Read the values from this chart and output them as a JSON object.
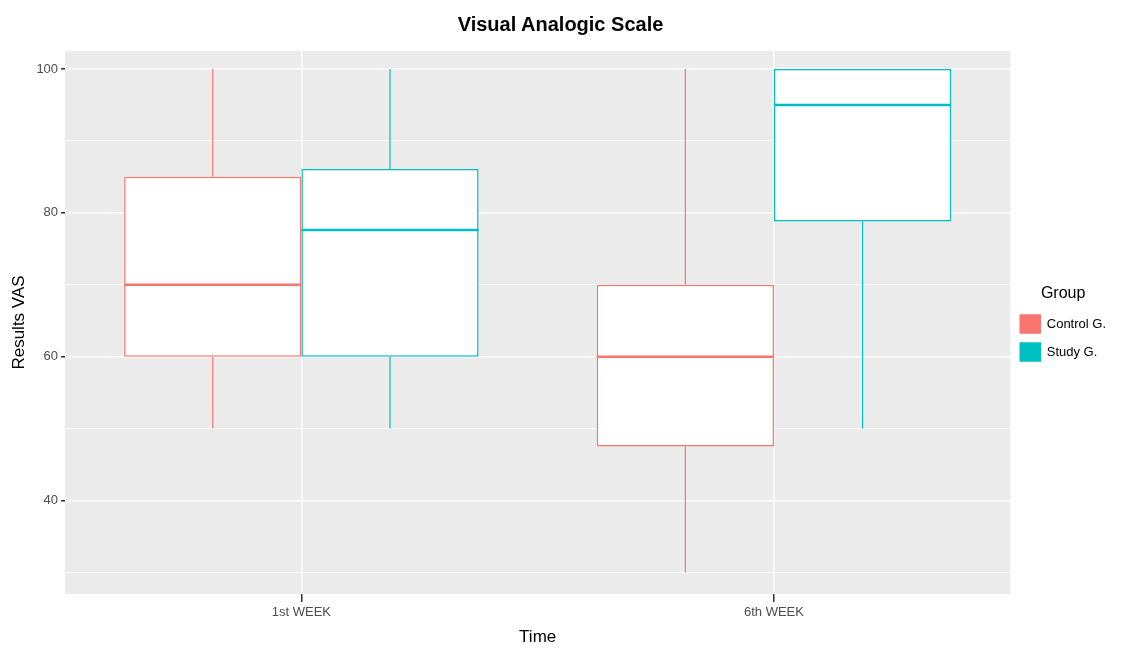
{
  "chart_data": {
    "type": "box",
    "title": "Visual Analogic Scale",
    "xlabel": "Time",
    "ylabel": "Results VAS",
    "legend_title": "Group",
    "legend": "right",
    "grid": true,
    "categories": [
      "1st WEEK",
      "6th WEEK"
    ],
    "ylim": [
      27,
      102.5
    ],
    "yticks": [
      {
        "value": 30,
        "label": null
      },
      40,
      {
        "value": 50,
        "label": null
      },
      60,
      {
        "value": 70,
        "label": null
      },
      80,
      {
        "value": 90,
        "label": null
      },
      100
    ],
    "series": [
      {
        "name": "Control G.",
        "color": "#f8766d",
        "boxes": [
          {
            "low": 50,
            "q1": 60,
            "median": 70,
            "q3": 85,
            "high": 100
          },
          {
            "low": 30,
            "q1": 47.5,
            "median": 60,
            "q3": 70,
            "high": 100
          }
        ]
      },
      {
        "name": "Study G.",
        "color": "#00bfc4",
        "boxes": [
          {
            "low": 50,
            "q1": 60,
            "median": 77.6,
            "q3": 86.1,
            "high": 100
          },
          {
            "low": 50,
            "q1": 78.8,
            "median": 95,
            "q3": 100,
            "high": 100
          }
        ]
      }
    ]
  }
}
